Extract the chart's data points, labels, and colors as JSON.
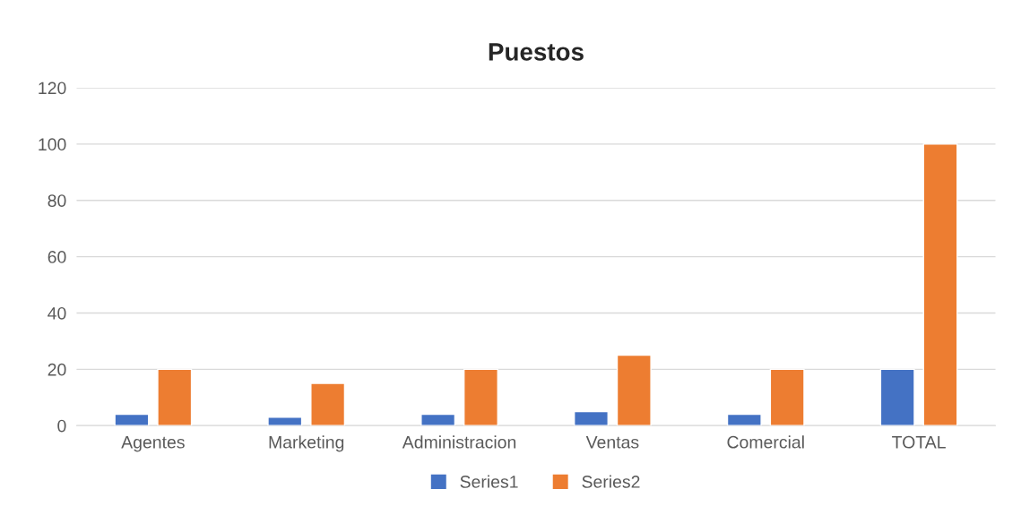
{
  "chart_data": {
    "type": "bar",
    "title": "Puestos",
    "categories": [
      "Agentes",
      "Marketing",
      "Administracion",
      "Ventas",
      "Comercial",
      "TOTAL"
    ],
    "series": [
      {
        "name": "Series1",
        "color": "#4472c4",
        "values": [
          4,
          3,
          4,
          5,
          4,
          20
        ]
      },
      {
        "name": "Series2",
        "color": "#ed7d31",
        "values": [
          20,
          15,
          20,
          25,
          20,
          100
        ]
      }
    ],
    "ylim": [
      0,
      120
    ],
    "yticks": [
      0,
      20,
      40,
      60,
      80,
      100,
      120
    ],
    "grid": "y",
    "legend": "bottom"
  }
}
